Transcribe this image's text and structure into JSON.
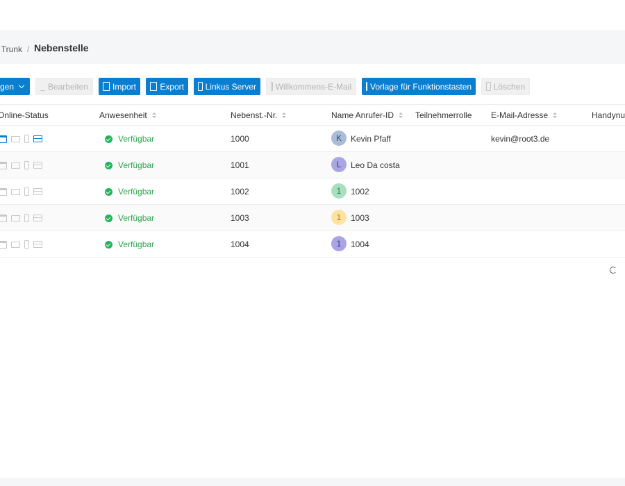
{
  "breadcrumb": {
    "previous": "d Trunk",
    "separator": "/",
    "current": "Nebenstelle"
  },
  "toolbar": {
    "add_label": "gen",
    "edit_label": "Bearbeiten",
    "import_label": "Import",
    "export_label": "Export",
    "linkus_label": "Linkus Server",
    "welcome_label": "Willkommens-E-Mail",
    "template_label": "Vorlage für Funktionstasten",
    "delete_label": "Löschen"
  },
  "colors": {
    "primary": "#0a7fd1",
    "available": "#2ea44f"
  },
  "table": {
    "headers": {
      "online_status": "Online-Status",
      "presence": "Anwesenheit",
      "extension": "Nebenst.-Nr.",
      "caller_id": "Name Anrufer-ID",
      "role": "Teilnehmerrolle",
      "email": "E-Mail-Adresse",
      "mobile": "Handynur"
    },
    "rows": [
      {
        "presence": "Verfügbar",
        "extension": "1000",
        "initial": "K",
        "avatar_bg": "#a9bdd6",
        "avatar_fg": "#2c4a6e",
        "caller": "Kevin Pfaff",
        "role": "",
        "email": "kevin@root3.de",
        "web_active": true
      },
      {
        "presence": "Verfügbar",
        "extension": "1001",
        "initial": "L",
        "avatar_bg": "#a9a6e3",
        "avatar_fg": "#3b357e",
        "caller": "Leo Da costa",
        "role": "",
        "email": "",
        "web_active": false
      },
      {
        "presence": "Verfügbar",
        "extension": "1002",
        "initial": "1",
        "avatar_bg": "#a8e0bf",
        "avatar_fg": "#2d7a4d",
        "caller": "1002",
        "role": "",
        "email": "",
        "web_active": false
      },
      {
        "presence": "Verfügbar",
        "extension": "1003",
        "initial": "1",
        "avatar_bg": "#fde3a0",
        "avatar_fg": "#b07a12",
        "caller": "1003",
        "role": "",
        "email": "",
        "web_active": false
      },
      {
        "presence": "Verfügbar",
        "extension": "1004",
        "initial": "1",
        "avatar_bg": "#aaa4e6",
        "avatar_fg": "#3b357e",
        "caller": "1004",
        "role": "",
        "email": "",
        "web_active": false
      }
    ]
  },
  "icons": {
    "web": "browser-icon",
    "desktop": "desktop-icon",
    "mobile": "mobile-icon",
    "card": "card-icon",
    "refresh": "refresh-icon"
  }
}
